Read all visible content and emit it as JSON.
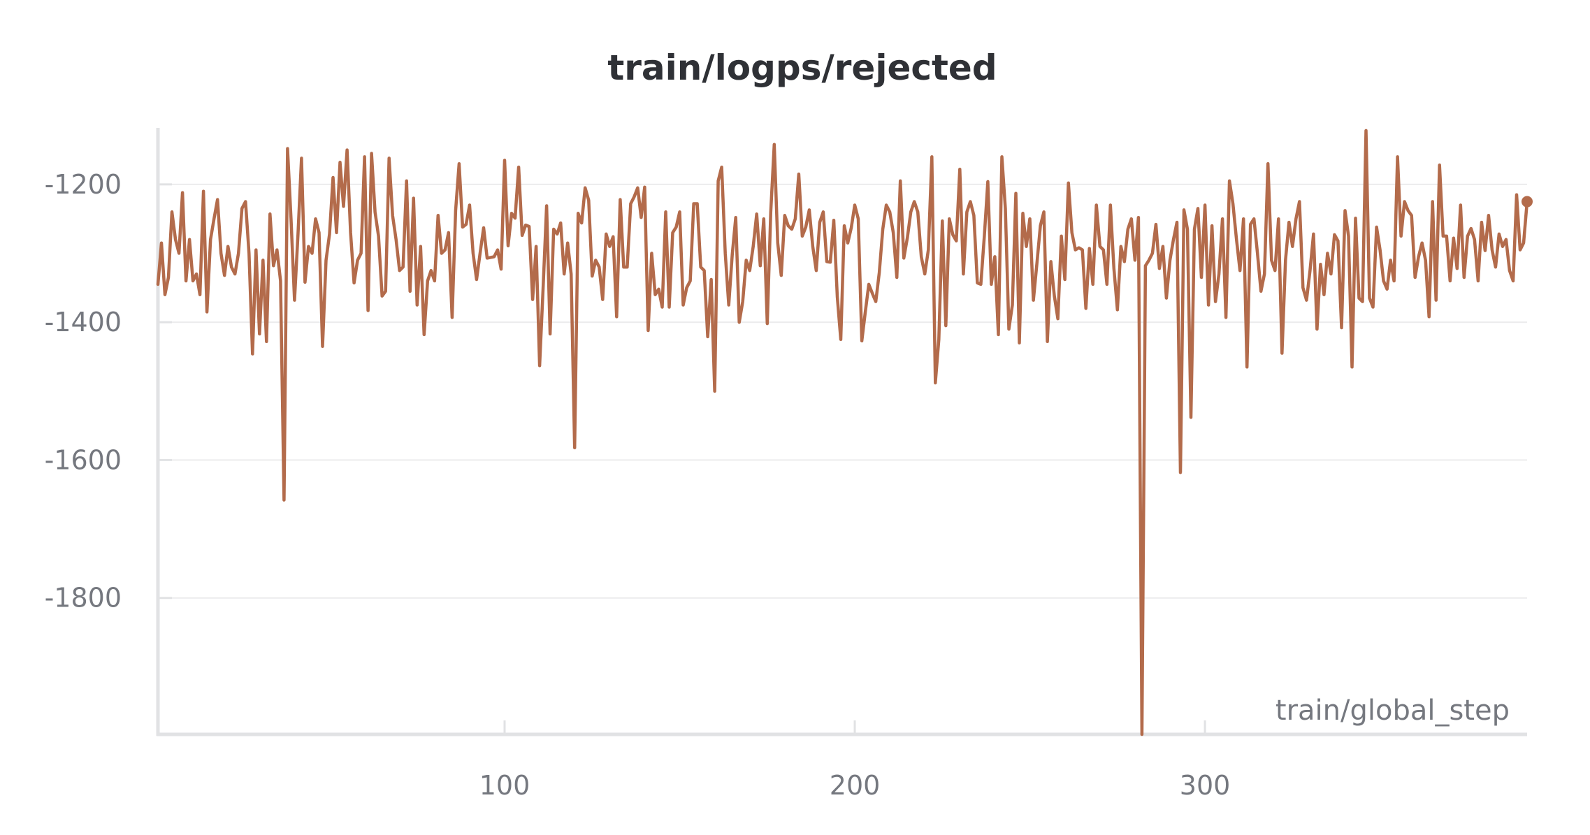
{
  "chart_data": {
    "type": "line",
    "title": "train/logps/rejected",
    "xlabel": "train/global_step",
    "ylabel": "",
    "xlim": [
      1,
      392
    ],
    "ylim": [
      -1998,
      -1118
    ],
    "x_ticks": [
      100,
      200,
      300
    ],
    "y_ticks": [
      -1200,
      -1400,
      -1600,
      -1800
    ],
    "x_tick_labels": [
      "100",
      "200",
      "300"
    ],
    "y_tick_labels": [
      "-1200",
      "-1400",
      "-1600",
      "-1800"
    ],
    "grid": true,
    "legend": "none",
    "color": "#b36b4b",
    "series": [
      {
        "x_start": 1,
        "x_step": 1,
        "values": [
          -1345,
          -1285,
          -1360,
          -1335,
          -1240,
          -1280,
          -1300,
          -1212,
          -1340,
          -1280,
          -1340,
          -1330,
          -1360,
          -1210,
          -1385,
          -1280,
          -1250,
          -1222,
          -1300,
          -1332,
          -1290,
          -1320,
          -1330,
          -1300,
          -1235,
          -1225,
          -1300,
          -1446,
          -1295,
          -1417,
          -1310,
          -1428,
          -1243,
          -1318,
          -1295,
          -1340,
          -1658,
          -1148,
          -1250,
          -1368,
          -1272,
          -1162,
          -1342,
          -1290,
          -1300,
          -1250,
          -1270,
          -1435,
          -1310,
          -1272,
          -1190,
          -1270,
          -1168,
          -1232,
          -1150,
          -1270,
          -1343,
          -1310,
          -1300,
          -1160,
          -1383,
          -1155,
          -1240,
          -1275,
          -1362,
          -1355,
          -1162,
          -1245,
          -1280,
          -1325,
          -1320,
          -1195,
          -1355,
          -1220,
          -1375,
          -1290,
          -1418,
          -1340,
          -1325,
          -1340,
          -1245,
          -1300,
          -1295,
          -1270,
          -1393,
          -1238,
          -1170,
          -1262,
          -1258,
          -1230,
          -1300,
          -1338,
          -1300,
          -1263,
          -1307,
          -1306,
          -1305,
          -1295,
          -1323,
          -1165,
          -1289,
          -1242,
          -1249,
          -1175,
          -1274,
          -1259,
          -1261,
          -1367,
          -1290,
          -1463,
          -1350,
          -1231,
          -1417,
          -1265,
          -1272,
          -1256,
          -1330,
          -1285,
          -1330,
          -1582,
          -1242,
          -1256,
          -1205,
          -1223,
          -1333,
          -1310,
          -1320,
          -1367,
          -1272,
          -1290,
          -1276,
          -1392,
          -1222,
          -1320,
          -1320,
          -1228,
          -1218,
          -1205,
          -1248,
          -1204,
          -1412,
          -1300,
          -1360,
          -1352,
          -1378,
          -1240,
          -1378,
          -1270,
          -1262,
          -1240,
          -1375,
          -1350,
          -1340,
          -1228,
          -1228,
          -1320,
          -1325,
          -1421,
          -1338,
          -1500,
          -1195,
          -1175,
          -1300,
          -1375,
          -1302,
          -1248,
          -1400,
          -1370,
          -1310,
          -1325,
          -1290,
          -1243,
          -1318,
          -1250,
          -1402,
          -1240,
          -1142,
          -1285,
          -1332,
          -1245,
          -1260,
          -1265,
          -1250,
          -1185,
          -1275,
          -1262,
          -1237,
          -1290,
          -1325,
          -1255,
          -1240,
          -1312,
          -1313,
          -1252,
          -1363,
          -1425,
          -1260,
          -1285,
          -1263,
          -1230,
          -1250,
          -1427,
          -1385,
          -1345,
          -1358,
          -1370,
          -1328,
          -1265,
          -1230,
          -1240,
          -1270,
          -1335,
          -1195,
          -1307,
          -1278,
          -1240,
          -1225,
          -1240,
          -1305,
          -1330,
          -1295,
          -1160,
          -1488,
          -1425,
          -1253,
          -1405,
          -1250,
          -1273,
          -1282,
          -1178,
          -1330,
          -1240,
          -1225,
          -1245,
          -1343,
          -1345,
          -1275,
          -1196,
          -1345,
          -1305,
          -1418,
          -1160,
          -1235,
          -1410,
          -1375,
          -1213,
          -1430,
          -1242,
          -1290,
          -1250,
          -1368,
          -1315,
          -1260,
          -1240,
          -1428,
          -1312,
          -1362,
          -1395,
          -1275,
          -1338,
          -1198,
          -1270,
          -1295,
          -1292,
          -1295,
          -1380,
          -1293,
          -1345,
          -1230,
          -1290,
          -1295,
          -1345,
          -1230,
          -1322,
          -1382,
          -1290,
          -1312,
          -1265,
          -1250,
          -1310,
          -1248,
          -1998,
          -1318,
          -1310,
          -1300,
          -1258,
          -1322,
          -1290,
          -1365,
          -1310,
          -1280,
          -1255,
          -1618,
          -1237,
          -1265,
          -1538,
          -1265,
          -1235,
          -1335,
          -1230,
          -1375,
          -1260,
          -1370,
          -1330,
          -1250,
          -1393,
          -1195,
          -1228,
          -1280,
          -1325,
          -1250,
          -1465,
          -1258,
          -1250,
          -1300,
          -1355,
          -1330,
          -1170,
          -1310,
          -1325,
          -1250,
          -1445,
          -1310,
          -1255,
          -1290,
          -1250,
          -1225,
          -1350,
          -1368,
          -1325,
          -1272,
          -1410,
          -1316,
          -1360,
          -1300,
          -1330,
          -1273,
          -1282,
          -1408,
          -1238,
          -1275,
          -1465,
          -1249,
          -1365,
          -1370,
          -1122,
          -1365,
          -1378,
          -1262,
          -1295,
          -1340,
          -1352,
          -1310,
          -1340,
          -1160,
          -1275,
          -1225,
          -1238,
          -1245,
          -1335,
          -1305,
          -1285,
          -1310,
          -1392,
          -1225,
          -1368,
          -1172,
          -1275,
          -1275,
          -1340,
          -1278,
          -1322,
          -1230,
          -1335,
          -1275,
          -1264,
          -1280,
          -1340,
          -1255,
          -1296,
          -1245,
          -1295,
          -1320,
          -1272,
          -1290,
          -1280,
          -1325,
          -1340,
          -1215,
          -1295,
          -1285,
          -1225
        ]
      }
    ]
  }
}
